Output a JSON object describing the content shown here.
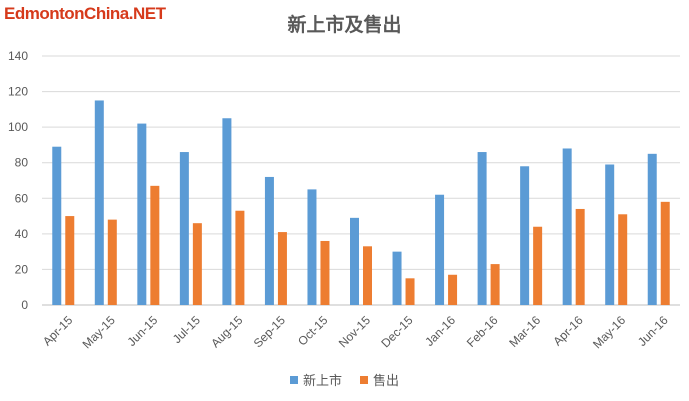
{
  "watermark": {
    "text": "EdmontonChina.NET",
    "color": "#d63a1b"
  },
  "chart_data": {
    "type": "bar",
    "title": "新上市及售出",
    "xlabel": "",
    "ylabel": "",
    "categories": [
      "Apr-15",
      "May-15",
      "Jun-15",
      "Jul-15",
      "Aug-15",
      "Sep-15",
      "Oct-15",
      "Nov-15",
      "Dec-15",
      "Jan-16",
      "Feb-16",
      "Mar-16",
      "Apr-16",
      "May-16",
      "Jun-16"
    ],
    "series": [
      {
        "name": "新上市",
        "color": "#5b9bd5",
        "values": [
          89,
          115,
          102,
          86,
          105,
          72,
          65,
          49,
          30,
          62,
          86,
          78,
          88,
          79,
          85
        ]
      },
      {
        "name": "售出",
        "color": "#ed7d31",
        "values": [
          50,
          48,
          67,
          46,
          53,
          41,
          36,
          33,
          15,
          17,
          23,
          44,
          54,
          51,
          58
        ]
      }
    ],
    "ylim": [
      0,
      140
    ],
    "yticks": [
      0,
      20,
      40,
      60,
      80,
      100,
      120,
      140
    ],
    "grid": true,
    "legend_position": "bottom"
  }
}
